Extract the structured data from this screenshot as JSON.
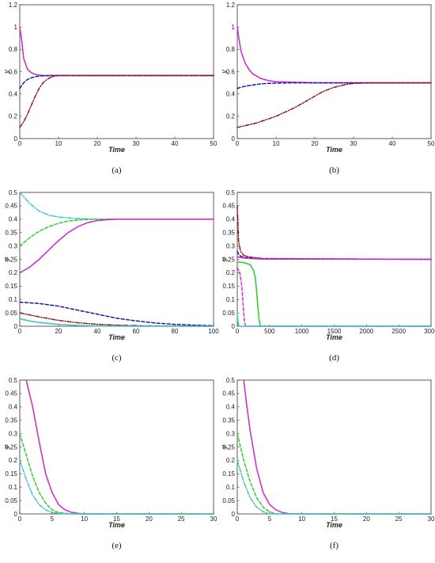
{
  "chart_data": [
    {
      "type": "line",
      "caption": "(a)",
      "xlabel": "Time",
      "ylabel": "y",
      "xlim": [
        0,
        50
      ],
      "ylim": [
        0,
        1.2
      ],
      "xticks": [
        0,
        10,
        20,
        30,
        40,
        50
      ],
      "yticks": [
        0,
        0.2,
        0.4,
        0.6,
        0.8,
        1,
        1.2
      ],
      "series": [
        {
          "color": "#cc33cc",
          "style": "solid",
          "x": [
            0,
            0.5,
            1,
            2,
            3,
            4,
            5,
            6,
            8,
            10,
            50
          ],
          "y": [
            1.0,
            0.88,
            0.72,
            0.62,
            0.59,
            0.575,
            0.57,
            0.565,
            0.565,
            0.565,
            0.565
          ]
        },
        {
          "color": "#1a1aa6",
          "style": "dashed",
          "x": [
            0,
            1,
            2,
            3,
            4,
            5,
            6,
            8,
            10,
            50
          ],
          "y": [
            0.45,
            0.5,
            0.53,
            0.545,
            0.555,
            0.56,
            0.563,
            0.565,
            0.565,
            0.565
          ]
        },
        {
          "color": "#8b1a1a",
          "style": "dashdot",
          "x": [
            0,
            1,
            2,
            3,
            4,
            5,
            6,
            7,
            8,
            9,
            10,
            50
          ],
          "y": [
            0.1,
            0.15,
            0.22,
            0.3,
            0.38,
            0.45,
            0.5,
            0.53,
            0.55,
            0.56,
            0.565,
            0.565
          ]
        }
      ]
    },
    {
      "type": "line",
      "caption": "(b)",
      "xlabel": "Time",
      "ylabel": "y",
      "xlim": [
        0,
        50
      ],
      "ylim": [
        0,
        1.2
      ],
      "xticks": [
        0,
        10,
        20,
        30,
        40,
        50
      ],
      "yticks": [
        0,
        0.2,
        0.4,
        0.6,
        0.8,
        1,
        1.2
      ],
      "series": [
        {
          "color": "#cc33cc",
          "style": "solid",
          "x": [
            0,
            0.5,
            1,
            2,
            3,
            4,
            6,
            8,
            10,
            15,
            20,
            50
          ],
          "y": [
            1.0,
            0.88,
            0.78,
            0.68,
            0.62,
            0.58,
            0.54,
            0.52,
            0.51,
            0.505,
            0.5,
            0.5
          ]
        },
        {
          "color": "#1a1aa6",
          "style": "dashed",
          "x": [
            0,
            2,
            4,
            6,
            8,
            10,
            14,
            18,
            50
          ],
          "y": [
            0.45,
            0.47,
            0.48,
            0.49,
            0.495,
            0.497,
            0.5,
            0.5,
            0.5
          ]
        },
        {
          "color": "#8b1a1a",
          "style": "dashdot",
          "x": [
            0,
            5,
            10,
            15,
            18,
            20,
            22,
            25,
            28,
            30,
            35,
            50
          ],
          "y": [
            0.1,
            0.14,
            0.2,
            0.28,
            0.34,
            0.38,
            0.42,
            0.46,
            0.485,
            0.495,
            0.5,
            0.5
          ]
        }
      ]
    },
    {
      "type": "line",
      "caption": "(c)",
      "xlabel": "Time",
      "ylabel": "y",
      "xlim": [
        0,
        100
      ],
      "ylim": [
        0,
        0.5
      ],
      "xticks": [
        0,
        20,
        40,
        60,
        80,
        100
      ],
      "yticks": [
        0,
        0.05,
        0.1,
        0.15,
        0.2,
        0.25,
        0.3,
        0.35,
        0.4,
        0.45,
        0.5
      ],
      "series": [
        {
          "color": "#40c0d0",
          "style": "dashdot",
          "x": [
            0,
            5,
            10,
            15,
            20,
            30,
            40,
            60,
            100
          ],
          "y": [
            0.5,
            0.46,
            0.43,
            0.415,
            0.408,
            0.402,
            0.4,
            0.4,
            0.4
          ]
        },
        {
          "color": "#33cc33",
          "style": "dashed",
          "x": [
            0,
            5,
            10,
            15,
            20,
            25,
            30,
            35,
            40,
            60,
            100
          ],
          "y": [
            0.3,
            0.33,
            0.355,
            0.372,
            0.385,
            0.393,
            0.397,
            0.399,
            0.4,
            0.4,
            0.4
          ]
        },
        {
          "color": "#cc33cc",
          "style": "solid",
          "x": [
            0,
            5,
            10,
            15,
            20,
            25,
            30,
            35,
            40,
            45,
            50,
            60,
            100
          ],
          "y": [
            0.2,
            0.22,
            0.25,
            0.285,
            0.32,
            0.35,
            0.372,
            0.387,
            0.395,
            0.398,
            0.4,
            0.4,
            0.4
          ]
        },
        {
          "color": "#1a1aa6",
          "style": "dashed",
          "x": [
            0,
            10,
            20,
            30,
            40,
            50,
            60,
            70,
            80,
            90,
            100
          ],
          "y": [
            0.09,
            0.085,
            0.075,
            0.06,
            0.045,
            0.03,
            0.02,
            0.012,
            0.007,
            0.004,
            0.002
          ]
        },
        {
          "color": "#8b1a1a",
          "style": "dashdot",
          "x": [
            0,
            10,
            20,
            30,
            40,
            50,
            60,
            70,
            100
          ],
          "y": [
            0.05,
            0.035,
            0.022,
            0.013,
            0.007,
            0.004,
            0.002,
            0.001,
            0.0
          ]
        },
        {
          "color": "#40c0d0",
          "style": "solid",
          "x": [
            0,
            5,
            10,
            20,
            30,
            40,
            60,
            100
          ],
          "y": [
            0.028,
            0.02,
            0.014,
            0.007,
            0.003,
            0.001,
            0.0,
            0.0
          ]
        }
      ]
    },
    {
      "type": "line",
      "caption": "(d)",
      "xlabel": "Time",
      "ylabel": "y",
      "xlim": [
        0,
        3000
      ],
      "ylim": [
        0,
        0.5
      ],
      "xticks": [
        0,
        500,
        1000,
        1500,
        2000,
        2500,
        3000
      ],
      "yticks": [
        0,
        0.05,
        0.1,
        0.15,
        0.2,
        0.25,
        0.3,
        0.35,
        0.4,
        0.45,
        0.5
      ],
      "series": [
        {
          "color": "#8b1a1a",
          "style": "dashdot",
          "x": [
            0,
            20,
            50,
            100,
            200,
            400,
            3000
          ],
          "y": [
            0.45,
            0.32,
            0.28,
            0.265,
            0.258,
            0.253,
            0.25
          ]
        },
        {
          "color": "#1a1aa6",
          "style": "dashed",
          "x": [
            0,
            20,
            50,
            100,
            200,
            400,
            3000
          ],
          "y": [
            0.28,
            0.27,
            0.262,
            0.258,
            0.255,
            0.252,
            0.25
          ]
        },
        {
          "color": "#cc33cc",
          "style": "solid",
          "x": [
            0,
            50,
            100,
            200,
            400,
            3000
          ],
          "y": [
            0.26,
            0.257,
            0.255,
            0.253,
            0.251,
            0.25
          ]
        },
        {
          "color": "#33cc33",
          "style": "solid",
          "x": [
            0,
            100,
            200,
            250,
            280,
            300,
            320,
            340,
            360,
            3000
          ],
          "y": [
            0.24,
            0.238,
            0.23,
            0.21,
            0.18,
            0.13,
            0.07,
            0.02,
            0.0,
            0.0
          ]
        },
        {
          "color": "#cc33cc",
          "style": "dashed",
          "x": [
            0,
            40,
            70,
            90,
            110,
            130,
            3000
          ],
          "y": [
            0.22,
            0.2,
            0.15,
            0.08,
            0.02,
            0.0,
            0.0
          ]
        },
        {
          "color": "#40c0d0",
          "style": "solid",
          "x": [
            0,
            10,
            20,
            30,
            3000
          ],
          "y": [
            0.05,
            0.02,
            0.005,
            0.0,
            0.0
          ]
        }
      ]
    },
    {
      "type": "line",
      "caption": "(e)",
      "xlabel": "Time",
      "ylabel": "y",
      "xlim": [
        0,
        30
      ],
      "ylim": [
        0,
        0.5
      ],
      "xticks": [
        0,
        5,
        10,
        15,
        20,
        25,
        30
      ],
      "yticks": [
        0,
        0.05,
        0.1,
        0.15,
        0.2,
        0.25,
        0.3,
        0.35,
        0.4,
        0.45,
        0.5
      ],
      "series": [
        {
          "color": "#cc33cc",
          "style": "solid",
          "x": [
            1,
            2,
            3,
            4,
            5,
            6,
            7,
            8,
            9,
            10,
            15,
            30
          ],
          "y": [
            0.5,
            0.4,
            0.27,
            0.15,
            0.08,
            0.035,
            0.015,
            0.006,
            0.002,
            0.0,
            0.0,
            0.0
          ]
        },
        {
          "color": "#33cc33",
          "style": "dashed",
          "x": [
            0,
            1,
            2,
            3,
            4,
            5,
            6,
            8,
            30
          ],
          "y": [
            0.3,
            0.22,
            0.14,
            0.08,
            0.04,
            0.015,
            0.005,
            0.0,
            0.0
          ]
        },
        {
          "color": "#40c0d0",
          "style": "dashdot",
          "x": [
            0,
            1,
            2,
            3,
            4,
            5,
            7,
            30
          ],
          "y": [
            0.2,
            0.13,
            0.07,
            0.035,
            0.015,
            0.005,
            0.0,
            0.0
          ]
        }
      ]
    },
    {
      "type": "line",
      "caption": "(f)",
      "xlabel": "Time",
      "ylabel": "y",
      "xlim": [
        0,
        30
      ],
      "ylim": [
        0,
        0.5
      ],
      "xticks": [
        0,
        5,
        10,
        15,
        20,
        25,
        30
      ],
      "yticks": [
        0,
        0.05,
        0.1,
        0.15,
        0.2,
        0.25,
        0.3,
        0.35,
        0.4,
        0.45,
        0.5
      ],
      "series": [
        {
          "color": "#cc33cc",
          "style": "solid",
          "x": [
            1,
            1.5,
            2,
            3,
            4,
            5,
            6,
            7,
            8,
            10,
            30
          ],
          "y": [
            0.5,
            0.4,
            0.31,
            0.17,
            0.08,
            0.035,
            0.015,
            0.005,
            0.001,
            0.0,
            0.0
          ]
        },
        {
          "color": "#33cc33",
          "style": "dashed",
          "x": [
            0,
            1,
            2,
            3,
            4,
            5,
            6,
            30
          ],
          "y": [
            0.3,
            0.2,
            0.12,
            0.06,
            0.025,
            0.008,
            0.0,
            0.0
          ]
        },
        {
          "color": "#40c0d0",
          "style": "dashdot",
          "x": [
            0,
            1,
            2,
            3,
            4,
            5,
            30
          ],
          "y": [
            0.2,
            0.12,
            0.06,
            0.025,
            0.008,
            0.0,
            0.0
          ]
        }
      ]
    }
  ]
}
